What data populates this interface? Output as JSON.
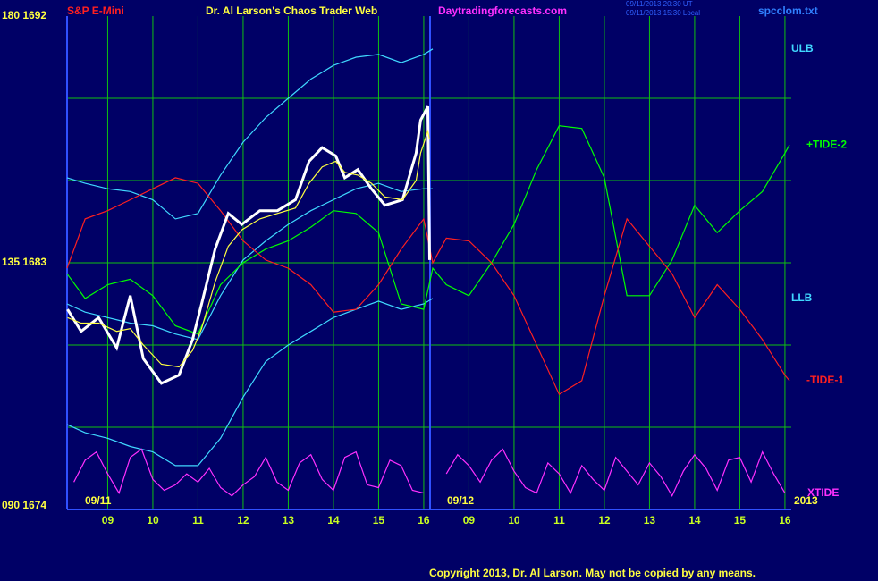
{
  "chart_data": {
    "type": "line",
    "title": "Dr. Al Larson's Chaos Trader Web",
    "instrument": "S&P E-Mini",
    "website": "Daytradingforecasts.com",
    "timestamps": [
      "09/11/2013 20:30 UT",
      "09/11/2013 15:30 Local"
    ],
    "file": "spcclom.txt",
    "dates": [
      "09/11",
      "09/12",
      "2013"
    ],
    "copyright": "Copyright 2013, Dr. Al Larson. May not be copied by any means.",
    "xlim": [
      -0.9,
      15.14
    ],
    "xticks": [
      {
        "value": 0,
        "label": "09"
      },
      {
        "value": 1,
        "label": "10"
      },
      {
        "value": 2,
        "label": "11"
      },
      {
        "value": 3,
        "label": "12"
      },
      {
        "value": 4,
        "label": "13"
      },
      {
        "value": 5,
        "label": "14"
      },
      {
        "value": 6,
        "label": "15"
      },
      {
        "value": 7,
        "label": "16"
      },
      {
        "value": 8,
        "label": "09"
      },
      {
        "value": 9,
        "label": "10"
      },
      {
        "value": 10,
        "label": "11"
      },
      {
        "value": 11,
        "label": "12"
      },
      {
        "value": 12,
        "label": "13"
      },
      {
        "value": 13,
        "label": "14"
      },
      {
        "value": 14,
        "label": "15"
      },
      {
        "value": 15,
        "label": "16"
      }
    ],
    "ylim": [
      1674,
      1692
    ],
    "yticks": [
      {
        "value": 1692,
        "label": "180 1692"
      },
      {
        "value": 1683,
        "label": "135 1683"
      },
      {
        "value": 1674,
        "label": "090 1674"
      }
    ],
    "grid_y": [
      1677,
      1680,
      1683,
      1686,
      1689
    ],
    "grid": true,
    "series": [
      {
        "name": "ULB",
        "color": "#40d8ff",
        "x": [
          -0.9,
          -0.5,
          0,
          0.5,
          1,
          1.5,
          2,
          2.5,
          3,
          3.5,
          4,
          4.5,
          5,
          5.5,
          6,
          6.5,
          7,
          7.2
        ],
        "values": [
          1686.1,
          1685.9,
          1685.7,
          1685.6,
          1685.3,
          1684.6,
          1684.8,
          1686.2,
          1687.4,
          1688.3,
          1689.0,
          1689.7,
          1690.2,
          1690.5,
          1690.6,
          1690.3,
          1690.6,
          1690.8
        ]
      },
      {
        "color": "#40d8ff",
        "x": [
          -0.9,
          -0.5,
          0,
          0.5,
          1,
          1.5,
          2,
          2.5,
          3,
          3.5,
          4,
          4.5,
          5,
          5.5,
          6,
          6.5,
          7,
          7.2
        ],
        "values": [
          1681.5,
          1681.2,
          1681.0,
          1680.8,
          1680.7,
          1680.4,
          1680.2,
          1681.8,
          1683.1,
          1683.8,
          1684.4,
          1684.9,
          1685.3,
          1685.7,
          1685.9,
          1685.6,
          1685.7,
          1685.7
        ]
      },
      {
        "name": "LLB",
        "color": "#40d8ff",
        "x": [
          -0.9,
          -0.5,
          0,
          0.5,
          1,
          1.5,
          2,
          2.5,
          3,
          3.5,
          4,
          4.5,
          5,
          5.5,
          6,
          6.5,
          7,
          7.2
        ],
        "values": [
          1677.1,
          1676.8,
          1676.6,
          1676.3,
          1676.1,
          1675.6,
          1675.6,
          1676.6,
          1678.1,
          1679.4,
          1680.0,
          1680.5,
          1681.0,
          1681.3,
          1681.6,
          1681.3,
          1681.5,
          1681.7
        ]
      },
      {
        "name": "+TIDE-2",
        "color": "#00ff00",
        "x": [
          -0.9,
          -0.5,
          0,
          0.5,
          1,
          1.5,
          2,
          2.5,
          3,
          3.5,
          4,
          4.5,
          5,
          5.5,
          6,
          6.5,
          7,
          7.2,
          7.5,
          8,
          8.5,
          9,
          9.5,
          10,
          10.5,
          11,
          11.5,
          12,
          12.5,
          13,
          13.5,
          14,
          14.5,
          15,
          15.1
        ],
        "values": [
          1682.6,
          1681.7,
          1682.2,
          1682.4,
          1681.8,
          1680.7,
          1680.4,
          1682.2,
          1683.0,
          1683.5,
          1683.8,
          1684.3,
          1684.9,
          1684.8,
          1684.1,
          1681.5,
          1681.3,
          1682.8,
          1682.2,
          1681.8,
          1683.0,
          1684.4,
          1686.4,
          1688.0,
          1687.9,
          1686.1,
          1681.8,
          1681.8,
          1683.1,
          1685.1,
          1684.1,
          1684.9,
          1685.6,
          1687.0,
          1687.3
        ]
      },
      {
        "name": "-TIDE-1",
        "color": "#ff2020",
        "x": [
          -0.9,
          -0.5,
          0,
          0.5,
          1,
          1.5,
          2,
          2.5,
          3,
          3.5,
          4,
          4.5,
          5,
          5.5,
          6,
          6.5,
          7,
          7.2,
          7.5,
          8,
          8.5,
          9,
          9.5,
          10,
          10.5,
          11,
          11.5,
          12,
          12.5,
          13,
          13.5,
          14,
          14.5,
          15,
          15.1
        ],
        "values": [
          1682.8,
          1684.6,
          1684.9,
          1685.3,
          1685.7,
          1686.1,
          1685.9,
          1684.9,
          1683.8,
          1683.1,
          1682.8,
          1682.2,
          1681.2,
          1681.3,
          1682.2,
          1683.5,
          1684.6,
          1683.0,
          1683.9,
          1683.8,
          1683.0,
          1681.8,
          1680.0,
          1678.2,
          1678.7,
          1681.8,
          1684.6,
          1683.6,
          1682.6,
          1681.0,
          1682.2,
          1681.3,
          1680.2,
          1678.9,
          1678.7
        ]
      },
      {
        "name": "XTIDE",
        "color": "#ff30ff",
        "x": [
          -0.75,
          -0.5,
          -0.25,
          0,
          0.25,
          0.5,
          0.75,
          1,
          1.25,
          1.5,
          1.75,
          2,
          2.25,
          2.5,
          2.75,
          3,
          3.25,
          3.5,
          3.75,
          4,
          4.25,
          4.5,
          4.75,
          5,
          5.25,
          5.5,
          5.75,
          6,
          6.25,
          6.5,
          6.75,
          7,
          7.25,
          7.5,
          7.75,
          8,
          8.25,
          8.5,
          8.75,
          9,
          9.25,
          9.5,
          9.75,
          10,
          10.25,
          10.5,
          10.75,
          11,
          11.25,
          11.5,
          11.75,
          12,
          12.25,
          12.5,
          12.75,
          13,
          13.25,
          13.5,
          13.75,
          14,
          14.25,
          14.5,
          14.75,
          15
        ],
        "values": [
          1675.0,
          1675.8,
          1676.1,
          1675.3,
          1674.6,
          1675.9,
          1676.2,
          1675.1,
          1674.7,
          1674.9,
          1675.3,
          1675.0,
          1675.5,
          1674.8,
          1674.5,
          1674.9,
          1675.2,
          1675.9,
          1675.0,
          1674.7,
          1675.7,
          1676.0,
          1675.1,
          1674.7,
          1675.9,
          1676.1,
          1674.9,
          1674.8,
          1675.8,
          1675.6,
          1674.7,
          1674.6,
          null,
          1675.3,
          1676.0,
          1675.6,
          1675.0,
          1675.8,
          1676.2,
          1675.4,
          1674.8,
          1674.6,
          1675.7,
          1675.3,
          1674.6,
          1675.6,
          1675.1,
          1674.7,
          1675.9,
          1675.4,
          1674.9,
          1675.7,
          1675.2,
          1674.5,
          1675.4,
          1676.0,
          1675.5,
          1674.7,
          1675.8,
          1675.9,
          1675.0,
          1676.1,
          1675.3,
          1674.6
        ]
      },
      {
        "color": "#ffffff",
        "x": [
          -0.89,
          -0.59,
          -0.2,
          0.2,
          0.5,
          0.79,
          1.19,
          1.58,
          1.88,
          2.08,
          2.38,
          2.67,
          2.97,
          3.37,
          3.76,
          4.16,
          4.46,
          4.75,
          5.05,
          5.25,
          5.54,
          5.84,
          6.14,
          6.53,
          6.83,
          6.93,
          7.09,
          7.13
        ],
        "values": [
          1681.3,
          1680.5,
          1681.0,
          1679.9,
          1681.8,
          1679.5,
          1678.6,
          1678.9,
          1680.2,
          1681.5,
          1683.5,
          1684.8,
          1684.4,
          1684.9,
          1684.9,
          1685.3,
          1686.7,
          1687.2,
          1686.9,
          1686.1,
          1686.4,
          1685.7,
          1685.1,
          1685.3,
          1687.0,
          1688.2,
          1688.7,
          1683.1
        ]
      },
      {
        "color": "#ffff40",
        "x": [
          -0.89,
          -0.59,
          -0.2,
          0.2,
          0.5,
          0.79,
          1.19,
          1.58,
          1.88,
          2.08,
          2.38,
          2.67,
          2.97,
          3.37,
          3.76,
          4.16,
          4.46,
          4.75,
          5.05,
          5.25,
          5.54,
          5.84,
          6.14,
          6.53,
          6.83,
          6.93,
          7.09,
          7.13
        ],
        "values": [
          1681.0,
          1680.8,
          1680.8,
          1680.5,
          1680.6,
          1680.0,
          1679.3,
          1679.2,
          1679.8,
          1680.6,
          1682.3,
          1683.6,
          1684.2,
          1684.6,
          1684.8,
          1685.0,
          1685.9,
          1686.5,
          1686.7,
          1686.3,
          1686.2,
          1685.9,
          1685.4,
          1685.3,
          1686.0,
          1687.0,
          1687.8,
          1687.5
        ]
      }
    ]
  }
}
